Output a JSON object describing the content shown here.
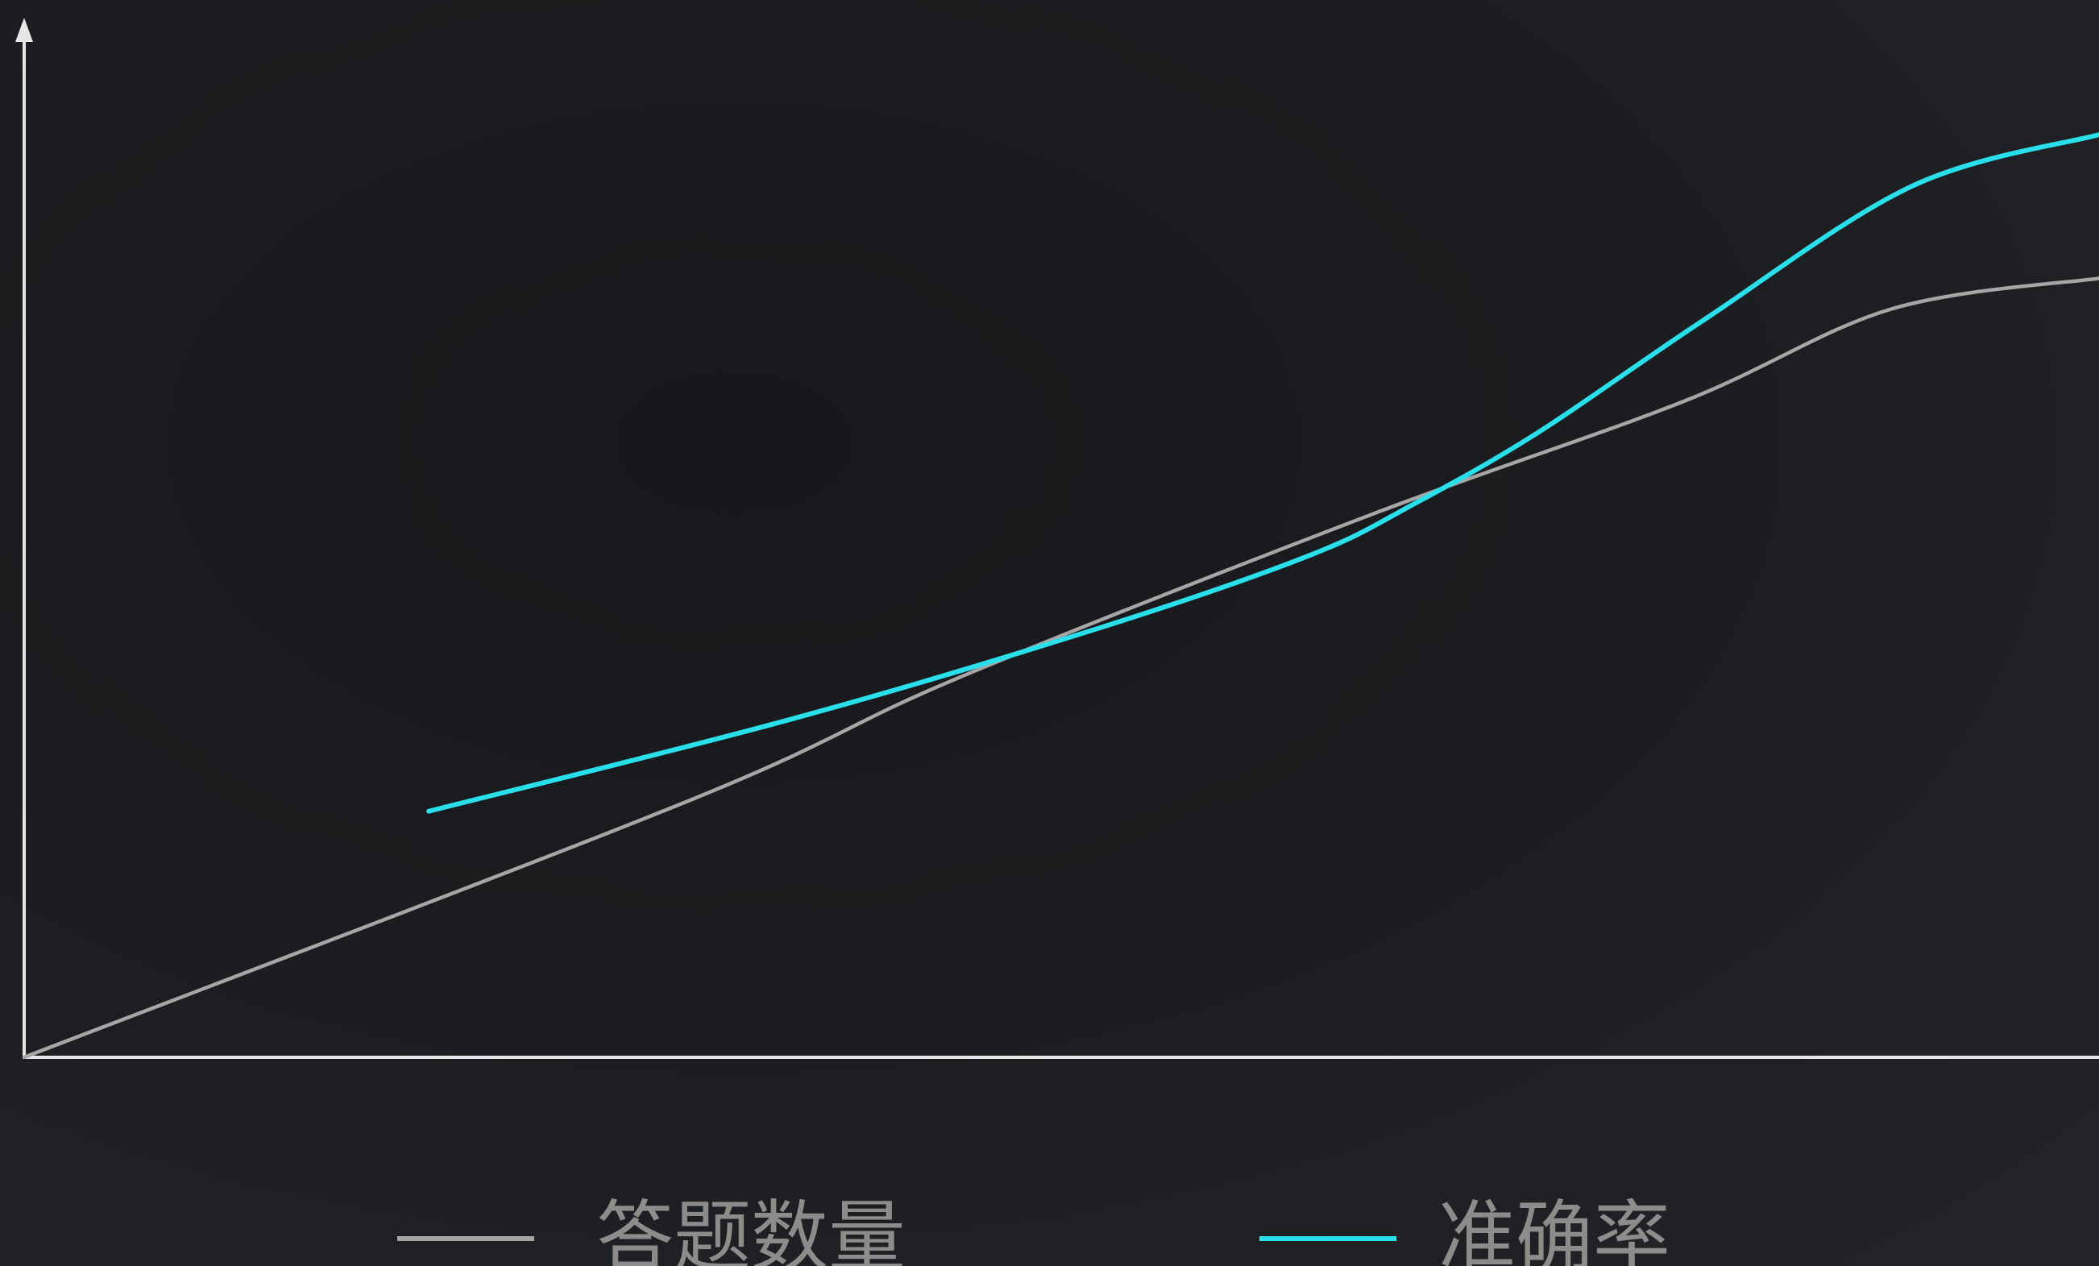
{
  "chart_data": {
    "type": "line",
    "title": "",
    "xlabel": "",
    "ylabel": "",
    "xlim": [
      0,
      100
    ],
    "ylim": [
      0,
      100
    ],
    "grid": false,
    "legend_position": "bottom",
    "series": [
      {
        "name": "答题数量",
        "color": "#a6a6a6",
        "x": [
          0,
          32,
          45,
          65,
          80,
          90,
          100
        ],
        "y": [
          0,
          25,
          37,
          53,
          64,
          73,
          76
        ]
      },
      {
        "name": "准确率",
        "color": "#29e0ea",
        "x": [
          19.5,
          37,
          52,
          62,
          67,
          73,
          81,
          91,
          100
        ],
        "y": [
          24,
          33,
          42,
          49,
          54,
          61,
          72,
          85,
          90
        ]
      }
    ]
  }
}
